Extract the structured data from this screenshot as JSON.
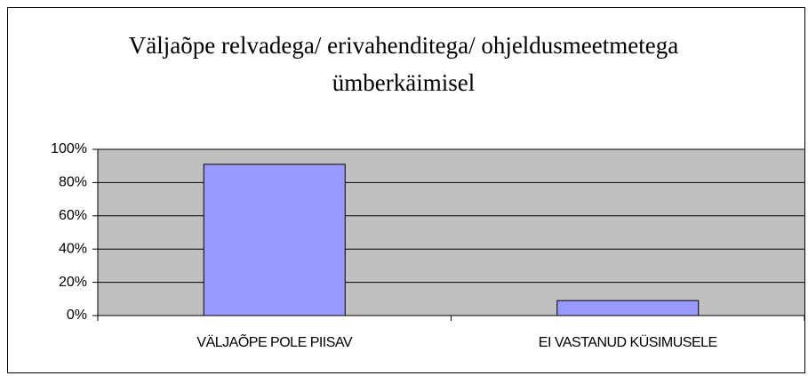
{
  "chart_data": {
    "type": "bar",
    "title": "Väljaõpe relvadega/ erivahenditega/ ohjeldusmeetmetega ümberkäimisel",
    "categories": [
      "VÄLJAÕPE POLE PIISAV",
      "EI VASTANUD KÜSIMUSELE"
    ],
    "values": [
      91,
      9
    ],
    "color": "#9999ff",
    "ylim": [
      0,
      100
    ],
    "yticks": [
      {
        "value": 0,
        "label": "0%"
      },
      {
        "value": 20,
        "label": "20%"
      },
      {
        "value": 40,
        "label": "40%"
      },
      {
        "value": 60,
        "label": "60%"
      },
      {
        "value": 80,
        "label": "80%"
      },
      {
        "value": 100,
        "label": "100%"
      }
    ],
    "grid": true
  }
}
